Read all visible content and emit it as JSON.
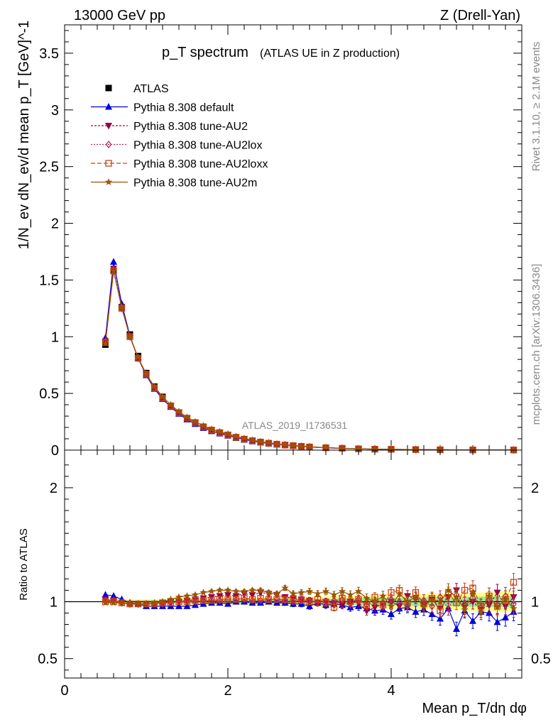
{
  "header": {
    "left": "13000 GeV pp",
    "right": "Z (Drell-Yan)"
  },
  "side": {
    "rivet": "Rivet 3.1.10, ≥ 2.1M events",
    "mcplots": "mcplots.cern.ch [arXiv:1306.3436]"
  },
  "chart_data": [
    {
      "type": "line",
      "title": "p_T spectrum",
      "subtitle": "(ATLAS UE in Z production)",
      "analysis_label": "ATLAS_2019_I1736531",
      "ylabel": "1/N_ev dN_ev/d mean p_T [GeV]^-1",
      "xlabel": "Mean p_T/dη dφ",
      "xlim": [
        0,
        5.6
      ],
      "ylim": [
        0,
        3.75
      ],
      "xticks": [
        "0",
        "2",
        "4"
      ],
      "yticks": [
        "0",
        "0.5",
        "1",
        "1.5",
        "2",
        "2.5",
        "3",
        "3.5"
      ],
      "legend_position": "top-left",
      "x": [
        0.5,
        0.6,
        0.7,
        0.8,
        0.9,
        1.0,
        1.1,
        1.2,
        1.3,
        1.4,
        1.5,
        1.6,
        1.7,
        1.8,
        1.9,
        2.0,
        2.1,
        2.2,
        2.3,
        2.4,
        2.5,
        2.6,
        2.7,
        2.8,
        2.9,
        3.0,
        3.2,
        3.4,
        3.6,
        3.8,
        4.0,
        4.3,
        4.6,
        5.0,
        5.5
      ],
      "series": [
        {
          "name": "ATLAS",
          "color": "#000000",
          "marker": "square",
          "values": [
            0.93,
            1.58,
            1.26,
            1.02,
            0.83,
            0.68,
            0.56,
            0.47,
            0.39,
            0.33,
            0.28,
            0.24,
            0.2,
            0.17,
            0.15,
            0.13,
            0.11,
            0.094,
            0.08,
            0.069,
            0.059,
            0.051,
            0.044,
            0.038,
            0.033,
            0.028,
            0.021,
            0.016,
            0.012,
            0.009,
            0.007,
            0.005,
            0.003,
            0.002,
            0.001
          ]
        },
        {
          "name": "Pythia 8.308 default",
          "color": "#0000dd",
          "marker": "triangle-up",
          "values": [
            0.99,
            1.66,
            1.29,
            1.01,
            0.81,
            0.66,
            0.54,
            0.45,
            0.38,
            0.32,
            0.27,
            0.23,
            0.195,
            0.168,
            0.146,
            0.128,
            0.11,
            0.093,
            0.079,
            0.068,
            0.058,
            0.05,
            0.043,
            0.037,
            0.032,
            0.027,
            0.02,
            0.015,
            0.011,
            0.008,
            0.0062,
            0.0044,
            0.0026,
            0.0017,
            0.0009
          ]
        },
        {
          "name": "Pythia 8.308 tune-AU2",
          "color": "#990044",
          "marker": "triangle-down",
          "values": [
            0.96,
            1.6,
            1.26,
            1.0,
            0.81,
            0.67,
            0.55,
            0.46,
            0.39,
            0.33,
            0.28,
            0.243,
            0.207,
            0.178,
            0.156,
            0.136,
            0.116,
            0.099,
            0.085,
            0.073,
            0.063,
            0.054,
            0.047,
            0.04,
            0.034,
            0.029,
            0.021,
            0.016,
            0.0115,
            0.0085,
            0.0068,
            0.0048,
            0.0031,
            0.0019,
            0.0011
          ]
        },
        {
          "name": "Pythia 8.308 tune-AU2lox",
          "color": "#bb2255",
          "marker": "diamond-open",
          "values": [
            0.95,
            1.59,
            1.25,
            1.0,
            0.81,
            0.67,
            0.55,
            0.46,
            0.39,
            0.33,
            0.281,
            0.242,
            0.205,
            0.176,
            0.154,
            0.133,
            0.113,
            0.097,
            0.083,
            0.071,
            0.061,
            0.052,
            0.045,
            0.039,
            0.033,
            0.028,
            0.021,
            0.016,
            0.0113,
            0.0083,
            0.0066,
            0.0046,
            0.003,
            0.0019,
            0.0011
          ]
        },
        {
          "name": "Pythia 8.308 tune-AU2loxx",
          "color": "#cc4411",
          "marker": "square-open",
          "values": [
            0.95,
            1.58,
            1.25,
            1.0,
            0.81,
            0.67,
            0.55,
            0.46,
            0.39,
            0.33,
            0.282,
            0.243,
            0.206,
            0.177,
            0.155,
            0.134,
            0.114,
            0.097,
            0.083,
            0.071,
            0.061,
            0.052,
            0.045,
            0.039,
            0.033,
            0.028,
            0.021,
            0.016,
            0.0114,
            0.0085,
            0.007,
            0.0048,
            0.0031,
            0.0021,
            0.0012
          ]
        },
        {
          "name": "Pythia 8.308 tune-AU2m",
          "color": "#995500",
          "marker": "star",
          "values": [
            0.94,
            1.58,
            1.26,
            1.0,
            0.82,
            0.67,
            0.56,
            0.47,
            0.4,
            0.34,
            0.29,
            0.25,
            0.215,
            0.185,
            0.163,
            0.143,
            0.121,
            0.103,
            0.088,
            0.076,
            0.065,
            0.055,
            0.048,
            0.041,
            0.035,
            0.03,
            0.022,
            0.017,
            0.012,
            0.009,
            0.007,
            0.005,
            0.0032,
            0.002,
            0.0011
          ]
        }
      ]
    },
    {
      "type": "line",
      "ylabel": "Ratio to ATLAS",
      "xlim": [
        0,
        5.6
      ],
      "ylim": [
        0.33,
        2.33
      ],
      "yticks": [
        "0.5",
        "1",
        "2"
      ],
      "reference_line": 1,
      "x": [
        0.5,
        0.6,
        0.7,
        0.8,
        0.9,
        1.0,
        1.1,
        1.2,
        1.3,
        1.4,
        1.5,
        1.6,
        1.7,
        1.8,
        1.9,
        2.0,
        2.1,
        2.2,
        2.3,
        2.4,
        2.5,
        2.6,
        2.7,
        2.8,
        2.9,
        3.0,
        3.1,
        3.2,
        3.3,
        3.4,
        3.5,
        3.6,
        3.7,
        3.8,
        3.9,
        4.0,
        4.1,
        4.2,
        4.3,
        4.4,
        4.5,
        4.6,
        4.7,
        4.8,
        4.9,
        5.0,
        5.1,
        5.2,
        5.3,
        5.4,
        5.5
      ],
      "band_inner": [
        0.01,
        0.01,
        0.01,
        0.01,
        0.01,
        0.01,
        0.012,
        0.012,
        0.012,
        0.013,
        0.013,
        0.014,
        0.014,
        0.015,
        0.015,
        0.016,
        0.016,
        0.017,
        0.018,
        0.018,
        0.019,
        0.02,
        0.02,
        0.021,
        0.022,
        0.023,
        0.024,
        0.025,
        0.026,
        0.027,
        0.028,
        0.03,
        0.031,
        0.032,
        0.033,
        0.034,
        0.035,
        0.036,
        0.037,
        0.038,
        0.039,
        0.04,
        0.041,
        0.042,
        0.043,
        0.044,
        0.045,
        0.046,
        0.047,
        0.048,
        0.05
      ],
      "band_outer": [
        0.02,
        0.02,
        0.02,
        0.02,
        0.02,
        0.022,
        0.022,
        0.023,
        0.024,
        0.025,
        0.026,
        0.027,
        0.028,
        0.029,
        0.03,
        0.031,
        0.032,
        0.034,
        0.035,
        0.036,
        0.038,
        0.039,
        0.04,
        0.042,
        0.043,
        0.045,
        0.046,
        0.048,
        0.05,
        0.051,
        0.053,
        0.055,
        0.057,
        0.058,
        0.06,
        0.062,
        0.063,
        0.065,
        0.067,
        0.068,
        0.07,
        0.072,
        0.073,
        0.075,
        0.077,
        0.078,
        0.08,
        0.082,
        0.083,
        0.085,
        0.09
      ],
      "series": [
        {
          "name": "Pythia 8.308 default",
          "color": "#0000dd",
          "marker": "triangle-up",
          "values": [
            1.06,
            1.05,
            1.02,
            0.99,
            0.98,
            0.96,
            0.96,
            0.96,
            0.96,
            0.96,
            0.96,
            0.97,
            0.98,
            0.99,
            0.99,
            0.98,
            1.0,
            1.0,
            0.99,
            0.99,
            1.0,
            0.99,
            0.99,
            0.98,
            0.98,
            0.96,
            0.99,
            0.97,
            0.98,
            0.97,
            0.95,
            0.96,
            0.94,
            0.92,
            0.93,
            0.89,
            0.94,
            0.95,
            0.91,
            0.93,
            0.89,
            0.85,
            0.94,
            0.76,
            0.92,
            0.83,
            0.91,
            0.9,
            0.82,
            0.86,
            0.91
          ]
        },
        {
          "name": "Pythia 8.308 tune-AU2",
          "color": "#990044",
          "marker": "triangle-down",
          "values": [
            1.02,
            1.01,
            0.99,
            0.98,
            0.98,
            0.98,
            0.98,
            0.99,
            1.0,
            1.0,
            1.01,
            1.02,
            1.03,
            1.04,
            1.05,
            1.06,
            1.05,
            1.07,
            1.06,
            1.08,
            1.07,
            1.06,
            1.04,
            1.03,
            1.02,
            1.01,
            0.99,
            1.0,
            0.98,
            0.97,
            1.0,
            0.99,
            0.92,
            0.95,
            0.98,
            1.0,
            0.96,
            1.05,
            1.03,
            0.97,
            1.02,
            0.94,
            1.04,
            1.1,
            0.95,
            1.0,
            0.93,
            0.97,
            1.08,
            0.96,
            1.04
          ]
        },
        {
          "name": "Pythia 8.308 tune-AU2lox",
          "color": "#bb2255",
          "marker": "diamond-open",
          "values": [
            1.01,
            1.01,
            0.99,
            0.98,
            0.98,
            0.98,
            0.98,
            0.98,
            0.99,
            1.0,
            1.0,
            1.0,
            1.01,
            1.01,
            1.01,
            1.02,
            1.02,
            1.02,
            1.01,
            1.01,
            1.02,
            1.02,
            1.01,
            1.0,
            1.01,
            1.0,
            0.99,
            1.0,
            1.01,
            1.02,
            0.98,
            1.02,
            0.97,
            1.0,
            0.97,
            1.02,
            1.0,
            0.96,
            1.03,
            1.01,
            0.96,
            1.04,
            0.94,
            1.06,
            0.98,
            1.07,
            0.95,
            1.02,
            0.97,
            1.05,
            0.98
          ]
        },
        {
          "name": "Pythia 8.308 tune-AU2loxx",
          "color": "#cc4411",
          "marker": "square-open",
          "values": [
            1.0,
            1.0,
            0.99,
            0.98,
            0.98,
            0.98,
            0.98,
            0.99,
            0.99,
            1.0,
            1.0,
            1.01,
            1.01,
            1.01,
            1.02,
            1.02,
            1.02,
            1.03,
            1.02,
            1.03,
            1.02,
            1.02,
            1.02,
            1.02,
            1.01,
            1.0,
            1.02,
            0.99,
            0.95,
            1.03,
            1.0,
            1.02,
            0.97,
            1.04,
            0.97,
            1.08,
            1.1,
            0.99,
            1.08,
            0.98,
            1.03,
            0.92,
            1.07,
            0.99,
            1.1,
            1.12,
            0.96,
            1.05,
            0.96,
            1.02,
            1.17
          ]
        },
        {
          "name": "Pythia 8.308 tune-AU2m",
          "color": "#995500",
          "marker": "star",
          "values": [
            0.99,
            0.99,
            0.99,
            0.98,
            0.98,
            0.98,
            0.99,
            1.0,
            1.02,
            1.04,
            1.05,
            1.06,
            1.08,
            1.09,
            1.1,
            1.1,
            1.09,
            1.09,
            1.1,
            1.1,
            1.08,
            1.07,
            1.12,
            1.07,
            1.08,
            1.09,
            1.07,
            1.09,
            1.06,
            1.09,
            1.06,
            1.09,
            1.03,
            1.0,
            1.05,
            0.96,
            1.07,
            1.0,
            1.04,
            0.96,
            1.02,
            1.0,
            1.1,
            1.04,
            0.93,
            1.08,
            0.91,
            1.05,
            0.95,
            1.02,
            0.94
          ]
        }
      ]
    }
  ]
}
